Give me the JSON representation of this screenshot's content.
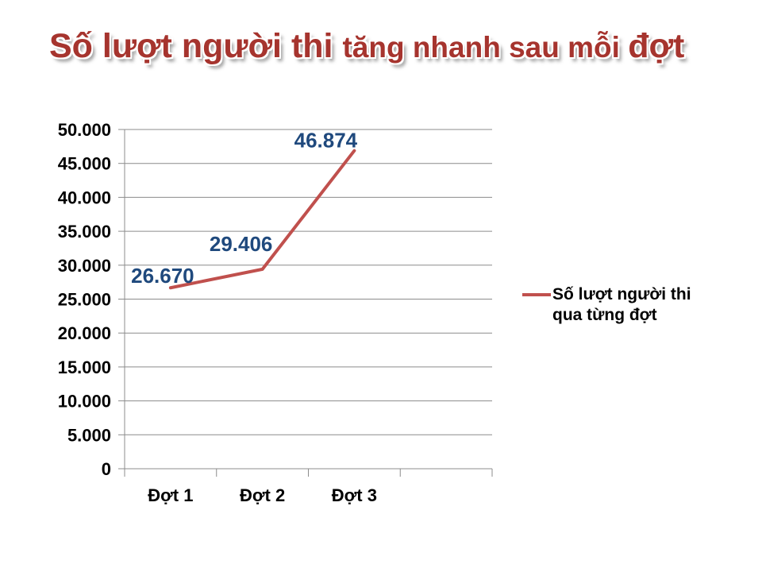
{
  "slide": {
    "title": {
      "part1": "Số lượt người thi ",
      "part2": "tăng nhanh sau mỗi ",
      "part3": "đợt"
    }
  },
  "chart_data": {
    "type": "line",
    "title": "Số lượt người thi tăng nhanh sau mỗi đợt",
    "categories": [
      "Đợt 1",
      "Đợt 2",
      "Đợt 3"
    ],
    "series": [
      {
        "name": "Số lượt người thi qua từng đợt",
        "values": [
          26670,
          29406,
          46874
        ]
      }
    ],
    "data_labels": [
      "26.670",
      "29.406",
      "46.874"
    ],
    "ylim": [
      0,
      50000
    ],
    "ytick_step": 5000,
    "ytick_labels": [
      "0",
      "5.000",
      "10.000",
      "15.000",
      "20.000",
      "25.000",
      "30.000",
      "35.000",
      "40.000",
      "45.000",
      "50.000"
    ],
    "xlabel": "",
    "ylabel": "",
    "grid": "horizontal",
    "legend_position": "right",
    "legend_lines": [
      "Số lượt người thi",
      "qua từng đợt"
    ],
    "colors": {
      "line": "#C0504D",
      "data_label": "#1F497D",
      "grid": "#8C8C8C",
      "axis": "#8C8C8C",
      "tick_label": "#000000",
      "title_red": "#A6342E"
    }
  }
}
